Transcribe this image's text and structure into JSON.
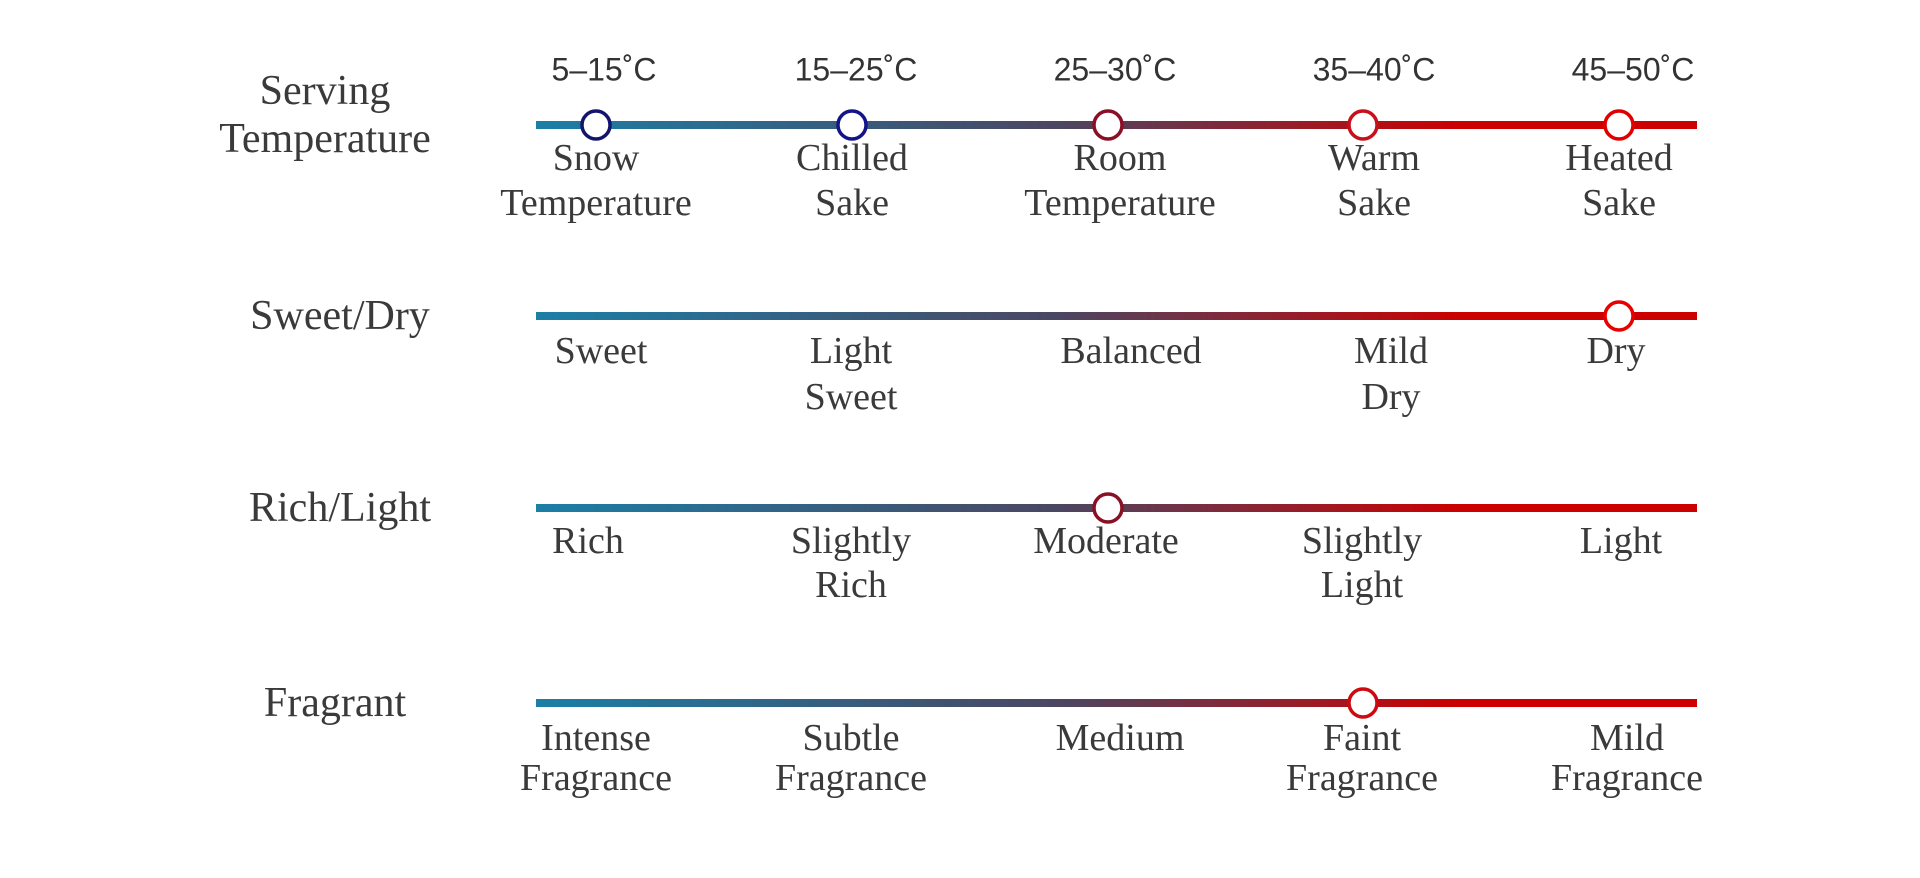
{
  "colors": {
    "gradient_start": "#1b7fa6",
    "gradient_mid": "#4b4662",
    "gradient_end": "#cc0000",
    "text": "#3a3a3a"
  },
  "rows": [
    {
      "label": [
        "Serving",
        "Temperature"
      ],
      "top_labels": [
        "5–15˚C",
        "15–25˚C",
        "25–30˚C",
        "35–40˚C",
        "45–50˚C"
      ],
      "categories": [
        [
          "Snow",
          "Temperature"
        ],
        [
          "Chilled",
          "Sake"
        ],
        [
          "Room",
          "Temperature"
        ],
        [
          "Warm",
          "Sake"
        ],
        [
          "Heated",
          "Sake"
        ]
      ],
      "markers": [
        0,
        1,
        2,
        3,
        4
      ],
      "marker_colors": [
        "#14146e",
        "#14148a",
        "#8a1025",
        "#c8101c",
        "#e00000"
      ]
    },
    {
      "label": [
        "Sweet/Dry"
      ],
      "top_labels": [],
      "categories": [
        [
          "Sweet"
        ],
        [
          "Light",
          "Sweet"
        ],
        [
          "Balanced"
        ],
        [
          "Mild",
          "Dry"
        ],
        [
          "Dry"
        ]
      ],
      "markers": [
        4
      ],
      "marker_colors": [
        "#e80000"
      ]
    },
    {
      "label": [
        "Rich/Light"
      ],
      "top_labels": [],
      "categories": [
        [
          "Rich"
        ],
        [
          "Slightly",
          "Rich"
        ],
        [
          "Moderate"
        ],
        [
          "Slightly",
          "Light"
        ],
        [
          "Light"
        ]
      ],
      "markers": [
        2
      ],
      "marker_colors": [
        "#8a1025"
      ]
    },
    {
      "label": [
        "Fragrant"
      ],
      "top_labels": [],
      "categories": [
        [
          "Intense",
          "Fragrance"
        ],
        [
          "Subtle",
          "Fragrance"
        ],
        [
          "Medium"
        ],
        [
          "Faint",
          "Fragrance"
        ],
        [
          "Mild",
          "Fragrance"
        ]
      ],
      "markers": [
        3
      ],
      "marker_colors": [
        "#cc0a10"
      ]
    }
  ]
}
